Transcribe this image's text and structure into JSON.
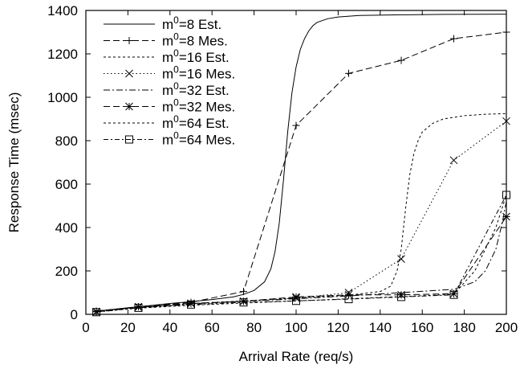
{
  "chart_data": {
    "type": "line",
    "xlabel": "Arrival Rate (req/s)",
    "ylabel": "Response Time (msec)",
    "xlim": [
      0,
      200
    ],
    "ylim": [
      0,
      1400
    ],
    "xticks": [
      0,
      20,
      40,
      60,
      80,
      100,
      120,
      140,
      160,
      180,
      200
    ],
    "yticks": [
      0,
      200,
      400,
      600,
      800,
      1000,
      1200,
      1400
    ],
    "grid": false,
    "legend_position": "top-left",
    "series": [
      {
        "name": "m0=8 Est.",
        "base": "m",
        "sup": "0",
        "rest": "=8 Est.",
        "dash": "solid",
        "marker": "none",
        "x": [
          5,
          10,
          20,
          30,
          40,
          50,
          60,
          70,
          75,
          80,
          85,
          88,
          90,
          92,
          94,
          96,
          98,
          100,
          102,
          104,
          106,
          108,
          110,
          115,
          120,
          130,
          150,
          170,
          200
        ],
        "y": [
          15,
          20,
          30,
          40,
          50,
          58,
          68,
          80,
          92,
          110,
          150,
          210,
          290,
          420,
          620,
          840,
          1020,
          1140,
          1220,
          1270,
          1305,
          1330,
          1345,
          1362,
          1370,
          1377,
          1380,
          1382,
          1383
        ]
      },
      {
        "name": "m0=8 Mes.",
        "base": "m",
        "sup": "0",
        "rest": "=8 Mes.",
        "dash": "dashed",
        "marker": "plus",
        "x": [
          5,
          25,
          50,
          75,
          100,
          125,
          150,
          175,
          200
        ],
        "y": [
          15,
          35,
          55,
          105,
          870,
          1110,
          1170,
          1270,
          1300
        ]
      },
      {
        "name": "m0=16 Est.",
        "base": "m",
        "sup": "0",
        "rest": "=16 Est.",
        "dash": "shortdash",
        "marker": "none",
        "x": [
          5,
          25,
          50,
          75,
          100,
          125,
          140,
          145,
          148,
          150,
          152,
          154,
          156,
          158,
          160,
          165,
          170,
          180,
          190,
          200
        ],
        "y": [
          15,
          32,
          50,
          62,
          75,
          88,
          105,
          130,
          200,
          300,
          480,
          640,
          740,
          800,
          840,
          880,
          900,
          915,
          922,
          925
        ]
      },
      {
        "name": "m0=16 Mes.",
        "base": "m",
        "sup": "0",
        "rest": "=16 Mes.",
        "dash": "dotted",
        "marker": "cross",
        "x": [
          5,
          25,
          50,
          75,
          100,
          125,
          150,
          175,
          200
        ],
        "y": [
          12,
          33,
          50,
          60,
          75,
          100,
          255,
          710,
          890
        ]
      },
      {
        "name": "m0=32 Est.",
        "base": "m",
        "sup": "0",
        "rest": "=32 Est.",
        "dash": "dashdot",
        "marker": "none",
        "x": [
          5,
          25,
          50,
          75,
          100,
          125,
          150,
          175,
          185,
          190,
          195,
          198,
          200
        ],
        "y": [
          15,
          32,
          48,
          60,
          72,
          85,
          100,
          115,
          150,
          200,
          300,
          420,
          520
        ]
      },
      {
        "name": "m0=32 Mes.",
        "base": "m",
        "sup": "0",
        "rest": "=32 Mes.",
        "dash": "dashed",
        "marker": "star",
        "x": [
          5,
          25,
          50,
          75,
          100,
          125,
          150,
          175,
          200
        ],
        "y": [
          12,
          35,
          50,
          60,
          80,
          90,
          90,
          95,
          450
        ]
      },
      {
        "name": "m0=64 Est.",
        "base": "m",
        "sup": "0",
        "rest": "=64 Est.",
        "dash": "shortdash",
        "marker": "none",
        "x": [
          5,
          25,
          50,
          75,
          100,
          125,
          150,
          175,
          185,
          190,
          195,
          200
        ],
        "y": [
          12,
          28,
          42,
          52,
          62,
          72,
          82,
          92,
          200,
          300,
          400,
          550
        ]
      },
      {
        "name": "m0=64 Mes.",
        "base": "m",
        "sup": "0",
        "rest": "=64 Mes.",
        "dash": "dashdotlong",
        "marker": "square",
        "x": [
          5,
          25,
          50,
          75,
          100,
          125,
          150,
          175,
          200
        ],
        "y": [
          10,
          30,
          45,
          55,
          62,
          70,
          80,
          90,
          550
        ]
      }
    ]
  }
}
